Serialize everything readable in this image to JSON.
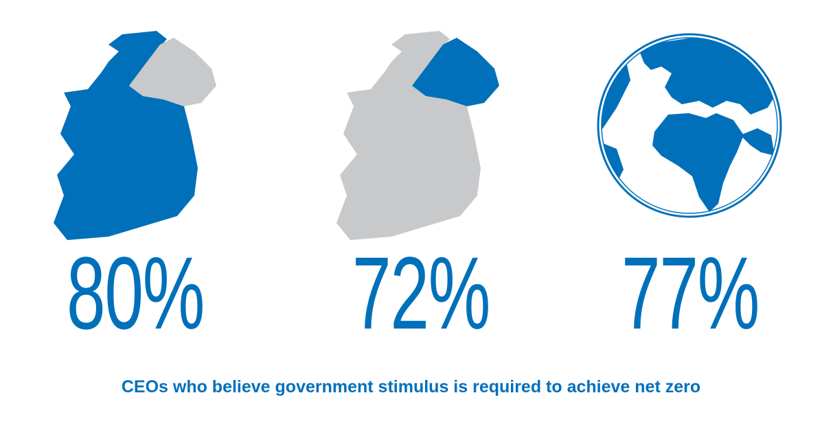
{
  "colors": {
    "highlight": "#0070ba",
    "muted": "#c8c9cb"
  },
  "panels": [
    {
      "icon": "ireland-map-icon",
      "highlighted_region": "Republic of Ireland",
      "value": "80%"
    },
    {
      "icon": "ireland-map-icon",
      "highlighted_region": "Northern Ireland",
      "value": "72%"
    },
    {
      "icon": "globe-icon",
      "highlighted_region": "World",
      "value": "77%"
    }
  ],
  "caption": "CEOs who believe government stimulus is required to achieve net zero"
}
